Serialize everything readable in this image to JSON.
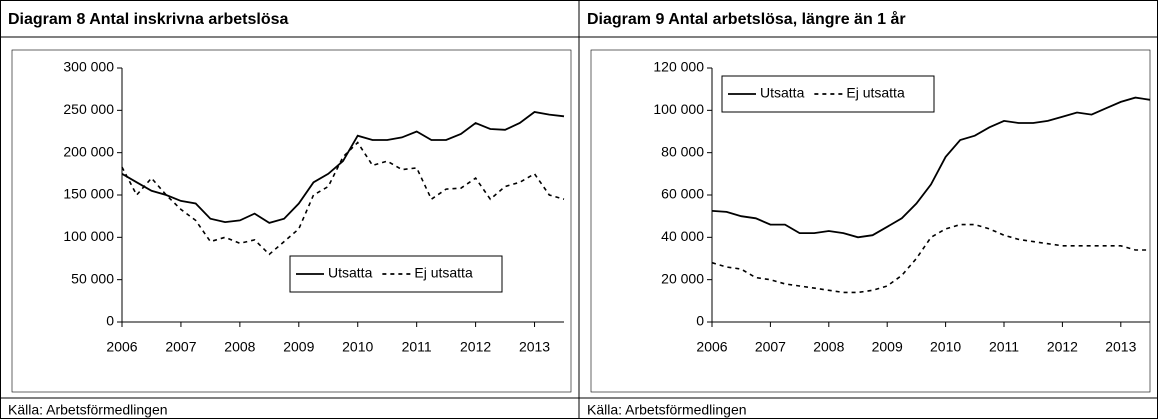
{
  "chart_data": [
    {
      "type": "line",
      "title": "Diagram 8 Antal inskrivna arbetslösa",
      "source": "Källa: Arbetsförmedlingen",
      "x": [
        2006,
        2006.25,
        2006.5,
        2006.75,
        2007,
        2007.25,
        2007.5,
        2007.75,
        2008,
        2008.25,
        2008.5,
        2008.75,
        2009,
        2009.25,
        2009.5,
        2009.75,
        2010,
        2010.25,
        2010.5,
        2010.75,
        2011,
        2011.25,
        2011.5,
        2011.75,
        2012,
        2012.25,
        2012.5,
        2012.75,
        2013,
        2013.25,
        2013.5
      ],
      "series": [
        {
          "name": "Utsatta",
          "color": "#000000",
          "line_style": "solid",
          "values": [
            175000,
            165000,
            155000,
            150000,
            143000,
            140000,
            122000,
            118000,
            120000,
            128000,
            117000,
            122000,
            140000,
            165000,
            175000,
            190000,
            220000,
            215000,
            215000,
            218000,
            225000,
            215000,
            215000,
            222000,
            235000,
            228000,
            227000,
            235000,
            248000,
            245000,
            243000
          ]
        },
        {
          "name": "Ej utsatta",
          "color": "#000000",
          "line_style": "dashed",
          "values": [
            183000,
            150000,
            170000,
            150000,
            133000,
            120000,
            95000,
            100000,
            93000,
            97000,
            80000,
            95000,
            110000,
            150000,
            160000,
            195000,
            212000,
            185000,
            190000,
            180000,
            182000,
            145000,
            157000,
            158000,
            170000,
            145000,
            160000,
            165000,
            175000,
            150000,
            145000
          ]
        }
      ],
      "xlim": [
        2006,
        2013.5
      ],
      "xticks": [
        2006,
        2007,
        2008,
        2009,
        2010,
        2011,
        2012,
        2013
      ],
      "ylim": [
        0,
        300000
      ],
      "yticks": [
        0,
        {
          "value": 50000,
          "label": "50 000"
        },
        {
          "value": 100000,
          "label": "100 000"
        },
        {
          "value": 150000,
          "label": "150 000"
        },
        {
          "value": 200000,
          "label": "200 000"
        },
        {
          "value": 250000,
          "label": "250 000"
        },
        {
          "value": 300000,
          "label": "300 000"
        }
      ],
      "grid": false,
      "legend": "lower right"
    },
    {
      "type": "line",
      "title": "Diagram 9 Antal arbetslösa, längre än 1 år",
      "source": "Källa: Arbetsförmedlingen",
      "x": [
        2006,
        2006.25,
        2006.5,
        2006.75,
        2007,
        2007.25,
        2007.5,
        2007.75,
        2008,
        2008.25,
        2008.5,
        2008.75,
        2009,
        2009.25,
        2009.5,
        2009.75,
        2010,
        2010.25,
        2010.5,
        2010.75,
        2011,
        2011.25,
        2011.5,
        2011.75,
        2012,
        2012.25,
        2012.5,
        2012.75,
        2013,
        2013.25,
        2013.5
      ],
      "series": [
        {
          "name": "Utsatta",
          "color": "#000000",
          "line_style": "solid",
          "values": [
            52500,
            52000,
            50000,
            49000,
            46000,
            46000,
            42000,
            42000,
            43000,
            42000,
            40000,
            41000,
            45000,
            49000,
            56000,
            65000,
            78000,
            86000,
            88000,
            92000,
            95000,
            94000,
            94000,
            95000,
            97000,
            99000,
            98000,
            101000,
            104000,
            106000,
            105000
          ]
        },
        {
          "name": "Ej utsatta",
          "color": "#000000",
          "line_style": "dashed",
          "values": [
            28000,
            26000,
            25000,
            21000,
            20000,
            18000,
            17000,
            16000,
            15000,
            14000,
            14000,
            15000,
            17000,
            22000,
            30000,
            40000,
            44000,
            46000,
            46000,
            44000,
            41000,
            39000,
            38000,
            37000,
            36000,
            36000,
            36000,
            36000,
            36000,
            34000,
            34000
          ]
        }
      ],
      "xlim": [
        2006,
        2013.5
      ],
      "xticks": [
        2006,
        2007,
        2008,
        2009,
        2010,
        2011,
        2012,
        2013
      ],
      "ylim": [
        0,
        120000
      ],
      "yticks": [
        0,
        {
          "value": 20000,
          "label": "20 000"
        },
        {
          "value": 40000,
          "label": "40 000"
        },
        {
          "value": 60000,
          "label": "60 000"
        },
        {
          "value": 80000,
          "label": "80 000"
        },
        {
          "value": 100000,
          "label": "100 000"
        },
        {
          "value": 120000,
          "label": "120 000"
        }
      ],
      "grid": false,
      "legend": "upper left"
    }
  ]
}
